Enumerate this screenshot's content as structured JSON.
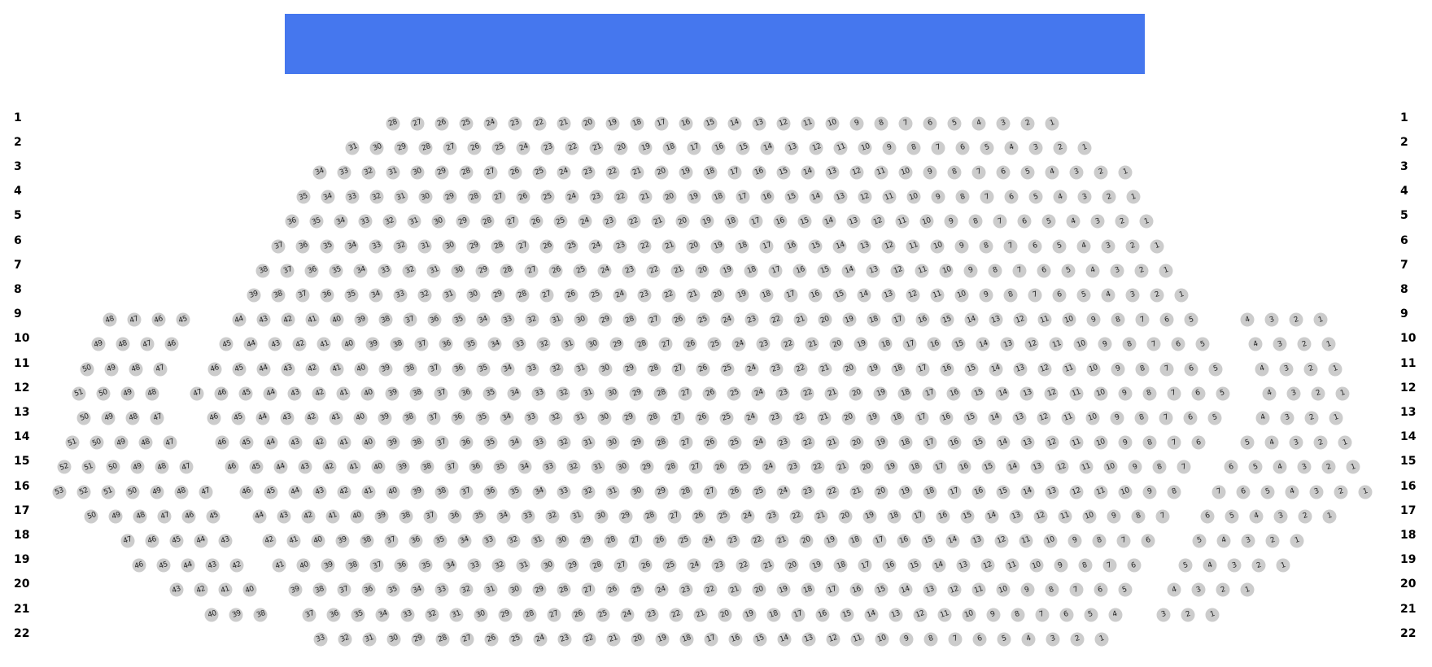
{
  "stage": {
    "color": "#4577ee"
  },
  "seat_color": "#cccccc",
  "rows": [
    {
      "label": "1",
      "sections": [
        [
          28,
          1
        ]
      ]
    },
    {
      "label": "2",
      "sections": [
        [
          31,
          1
        ]
      ]
    },
    {
      "label": "3",
      "sections": [
        [
          34,
          1
        ]
      ]
    },
    {
      "label": "4",
      "sections": [
        [
          35,
          1
        ]
      ]
    },
    {
      "label": "5",
      "sections": [
        [
          36,
          1
        ]
      ]
    },
    {
      "label": "6",
      "sections": [
        [
          37,
          1
        ]
      ]
    },
    {
      "label": "7",
      "sections": [
        [
          38,
          1
        ]
      ]
    },
    {
      "label": "8",
      "sections": [
        [
          39,
          1
        ]
      ]
    },
    {
      "label": "9",
      "sections": [
        [
          48,
          45
        ],
        [
          44,
          5
        ],
        [
          4,
          1
        ]
      ]
    },
    {
      "label": "10",
      "sections": [
        [
          49,
          46
        ],
        [
          45,
          5
        ],
        [
          4,
          1
        ]
      ]
    },
    {
      "label": "11",
      "sections": [
        [
          50,
          47
        ],
        [
          46,
          5
        ],
        [
          4,
          1
        ]
      ]
    },
    {
      "label": "12",
      "sections": [
        [
          51,
          48
        ],
        [
          47,
          5
        ],
        [
          4,
          1
        ]
      ]
    },
    {
      "label": "13",
      "sections": [
        [
          50,
          47
        ],
        [
          46,
          5
        ],
        [
          4,
          1
        ]
      ]
    },
    {
      "label": "14",
      "sections": [
        [
          51,
          47
        ],
        [
          46,
          6
        ],
        [
          5,
          1
        ]
      ]
    },
    {
      "label": "15",
      "sections": [
        [
          52,
          47
        ],
        [
          46,
          7
        ],
        [
          6,
          1
        ]
      ]
    },
    {
      "label": "16",
      "sections": [
        [
          53,
          47
        ],
        [
          46,
          8
        ],
        [
          7,
          1
        ]
      ]
    },
    {
      "label": "17",
      "sections": [
        [
          50,
          45
        ],
        [
          44,
          7
        ],
        [
          6,
          1
        ]
      ]
    },
    {
      "label": "18",
      "sections": [
        [
          47,
          43
        ],
        [
          42,
          6
        ],
        [
          5,
          1
        ]
      ]
    },
    {
      "label": "19",
      "sections": [
        [
          46,
          42
        ],
        [
          41,
          6
        ],
        [
          5,
          1
        ]
      ]
    },
    {
      "label": "20",
      "sections": [
        [
          43,
          40
        ],
        [
          39,
          5
        ],
        [
          4,
          1
        ]
      ]
    },
    {
      "label": "21",
      "sections": [
        [
          40,
          38
        ],
        [
          37,
          4
        ],
        [
          3,
          1
        ]
      ]
    },
    {
      "label": "22",
      "sections": [
        [
          33,
          1
        ]
      ]
    }
  ]
}
